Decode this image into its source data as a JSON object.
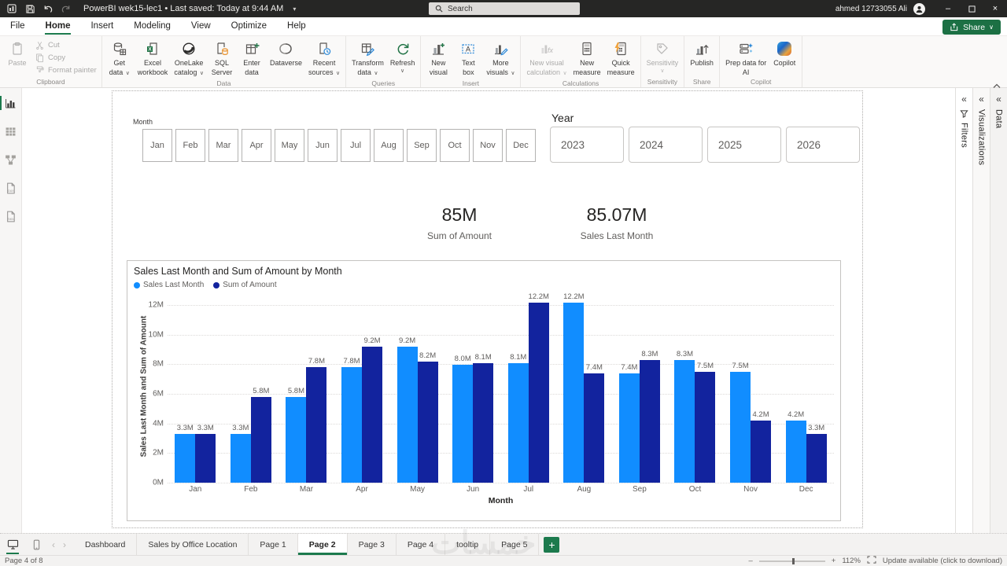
{
  "titlebar": {
    "title": "PowerBI wek15-lec1 • Last saved: Today at 9:44 AM",
    "search_placeholder": "Search",
    "user": "ahmed 12733055 Ali"
  },
  "menu": {
    "items": [
      "File",
      "Home",
      "Insert",
      "Modeling",
      "View",
      "Optimize",
      "Help"
    ],
    "active": "Home",
    "share_label": "Share"
  },
  "ribbon": {
    "groups": [
      {
        "label": "Clipboard",
        "buttons": [
          {
            "label": "Paste",
            "icon": "paste",
            "lines": [
              "Paste"
            ],
            "disabled": true
          },
          {
            "label": "Cut",
            "icon": "cut",
            "small": true,
            "disabled": true
          },
          {
            "label": "Copy",
            "icon": "copy",
            "small": true,
            "disabled": true
          },
          {
            "label": "Format painter",
            "icon": "format-painter",
            "small": true,
            "disabled": true
          }
        ]
      },
      {
        "label": "Data",
        "buttons": [
          {
            "label": "Get data",
            "icon": "get-data",
            "lines": [
              "Get",
              "data"
            ],
            "caret": "inline"
          },
          {
            "label": "Excel workbook",
            "icon": "excel-workbook",
            "lines": [
              "Excel",
              "workbook"
            ]
          },
          {
            "label": "OneLake catalog",
            "icon": "onelake-catalog",
            "lines": [
              "OneLake",
              "catalog"
            ],
            "caret": "inline"
          },
          {
            "label": "SQL Server",
            "icon": "sql-server",
            "lines": [
              "SQL",
              "Server"
            ]
          },
          {
            "label": "Enter data",
            "icon": "enter-data",
            "lines": [
              "Enter",
              "data"
            ]
          },
          {
            "label": "Dataverse",
            "icon": "dataverse",
            "lines": [
              "Dataverse"
            ]
          },
          {
            "label": "Recent sources",
            "icon": "recent-sources",
            "lines": [
              "Recent",
              "sources"
            ],
            "caret": "inline"
          }
        ]
      },
      {
        "label": "Queries",
        "buttons": [
          {
            "label": "Transform data",
            "icon": "transform-data",
            "lines": [
              "Transform",
              "data"
            ],
            "caret": "inline"
          },
          {
            "label": "Refresh",
            "icon": "refresh",
            "lines": [
              "Refresh"
            ],
            "caret": "below"
          }
        ]
      },
      {
        "label": "Insert",
        "buttons": [
          {
            "label": "New visual",
            "icon": "new-visual",
            "lines": [
              "New",
              "visual"
            ]
          },
          {
            "label": "Text box",
            "icon": "text-box",
            "lines": [
              "Text",
              "box"
            ]
          },
          {
            "label": "More visuals",
            "icon": "more-visuals",
            "lines": [
              "More",
              "visuals"
            ],
            "caret": "inline"
          }
        ]
      },
      {
        "label": "Calculations",
        "buttons": [
          {
            "label": "New visual calculation",
            "icon": "visual-calculation",
            "lines": [
              "New visual",
              "calculation"
            ],
            "caret": "inline",
            "disabled": true
          },
          {
            "label": "New measure",
            "icon": "new-measure",
            "lines": [
              "New",
              "measure"
            ]
          },
          {
            "label": "Quick measure",
            "icon": "quick-measure",
            "lines": [
              "Quick",
              "measure"
            ]
          }
        ]
      },
      {
        "label": "Sensitivity",
        "buttons": [
          {
            "label": "Sensitivity",
            "icon": "sensitivity",
            "lines": [
              "Sensitivity"
            ],
            "caret": "below",
            "disabled": true
          }
        ]
      },
      {
        "label": "Share",
        "buttons": [
          {
            "label": "Publish",
            "icon": "publish",
            "lines": [
              "Publish"
            ]
          }
        ]
      },
      {
        "label": "Copilot",
        "buttons": [
          {
            "label": "Prep data for AI",
            "icon": "prep-data",
            "lines": [
              "Prep data for",
              "AI"
            ]
          },
          {
            "label": "Copilot",
            "icon": "copilot",
            "lines": [
              "Copilot"
            ]
          }
        ]
      }
    ]
  },
  "sidebar": {
    "views": [
      {
        "name": "report-view",
        "active": true
      },
      {
        "name": "table-view",
        "active": false
      },
      {
        "name": "model-view",
        "active": false
      },
      {
        "name": "dax-query-view",
        "active": false
      },
      {
        "name": "tmdl-view",
        "active": false
      }
    ]
  },
  "canvas": {
    "month_slicer": {
      "label": "Month",
      "options": [
        "Jan",
        "Feb",
        "Mar",
        "Apr",
        "May",
        "Jun",
        "Jul",
        "Aug",
        "Sep",
        "Oct",
        "Nov",
        "Dec"
      ]
    },
    "year_slicer": {
      "label": "Year",
      "options": [
        "2023",
        "2024",
        "2025",
        "2026"
      ]
    },
    "cards": [
      {
        "value": "85M",
        "caption": "Sum of Amount"
      },
      {
        "value": "85.07M",
        "caption": "Sales Last Month"
      }
    ]
  },
  "chart_data": {
    "type": "bar",
    "title": "Sales Last Month and Sum of Amount by Month",
    "categories": [
      "Jan",
      "Feb",
      "Mar",
      "Apr",
      "May",
      "Jun",
      "Jul",
      "Aug",
      "Sep",
      "Oct",
      "Nov",
      "Dec"
    ],
    "series": [
      {
        "name": "Sales Last Month",
        "color": "#118DFF",
        "values": [
          3.3,
          3.3,
          5.8,
          7.8,
          9.2,
          8.0,
          8.1,
          12.2,
          7.4,
          8.3,
          7.5,
          4.2
        ]
      },
      {
        "name": "Sum of Amount",
        "color": "#12239E",
        "values": [
          3.3,
          5.8,
          7.8,
          9.2,
          8.2,
          8.1,
          12.2,
          7.4,
          8.3,
          7.5,
          4.2,
          3.3
        ]
      }
    ],
    "xlabel": "Month",
    "ylabel": "Sales Last Month and Sum of Amount",
    "yticks": [
      "0M",
      "2M",
      "4M",
      "6M",
      "8M",
      "10M",
      "12M"
    ],
    "ylim": [
      0,
      12.65
    ],
    "grid": true,
    "legend_position": "top",
    "data_labels": true,
    "label_suffix": "M"
  },
  "right_panels": [
    {
      "label": "Filters",
      "has_filter_icon": true
    },
    {
      "label": "Visualizations",
      "has_filter_icon": false
    },
    {
      "label": "Data",
      "has_filter_icon": false
    }
  ],
  "tabbar": {
    "tabs": [
      "Dashboard",
      "Sales by Office Location",
      "Page 1",
      "Page 2",
      "Page 3",
      "Page 4",
      "tooltip",
      "Page 5"
    ],
    "active": "Page 2"
  },
  "statusbar": {
    "left": "Page 4 of 8",
    "zoom": "112%",
    "update": "Update available (click to download)"
  },
  "watermark": "خمسات"
}
